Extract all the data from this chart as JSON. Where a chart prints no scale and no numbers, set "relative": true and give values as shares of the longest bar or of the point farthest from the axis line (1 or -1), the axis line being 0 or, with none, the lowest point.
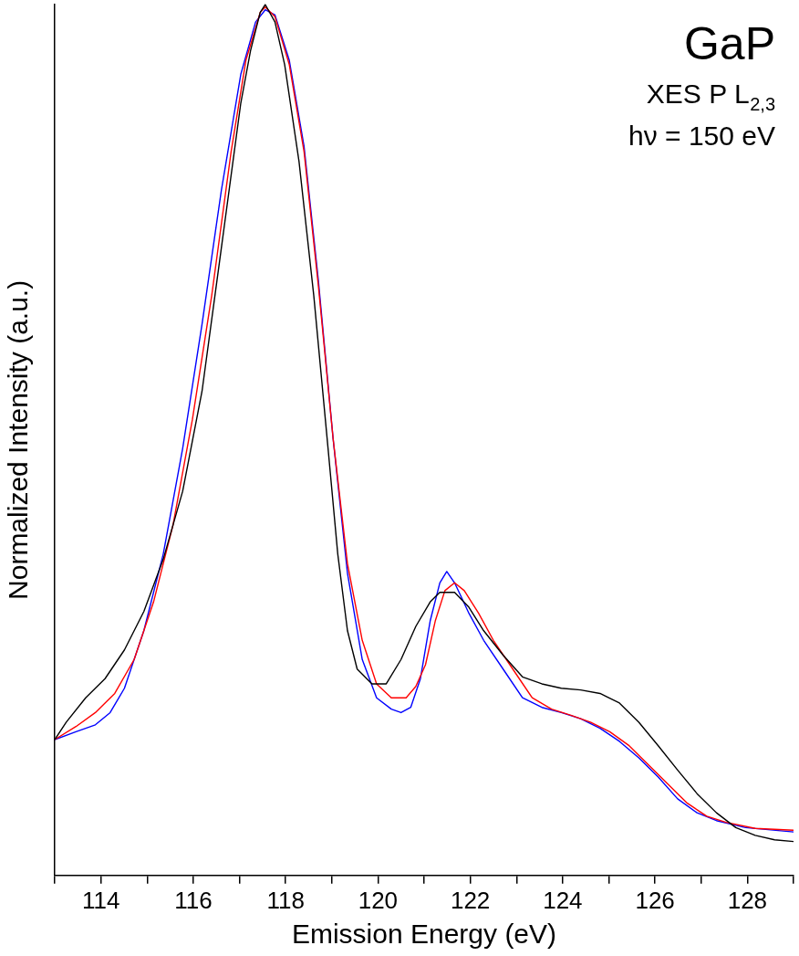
{
  "chart_data": {
    "type": "line",
    "relative": true,
    "xlabel": "Emission Energy (eV)",
    "ylabel": "Normalized Intensity (a.u.)",
    "annotations": [
      "GaP",
      "XES P L$_{2,3}$",
      "hν = 150 eV"
    ],
    "xlim": [
      113,
      129
    ],
    "xticks": [
      {
        "value": 113,
        "label": null
      },
      114,
      {
        "value": 115,
        "label": null
      },
      116,
      {
        "value": 117,
        "label": null
      },
      118,
      {
        "value": 119,
        "label": null
      },
      120,
      {
        "value": 121,
        "label": null
      },
      122,
      {
        "value": 123,
        "label": null
      },
      124,
      {
        "value": 125,
        "label": null
      },
      126,
      {
        "value": 127,
        "label": null
      },
      128,
      {
        "value": 129,
        "label": null
      }
    ],
    "grid": false,
    "legend": false,
    "marker": "none",
    "line_style": "solid",
    "series": [
      {
        "color": "#000000",
        "x": [
          113.0,
          113.25,
          113.67,
          114.09,
          114.51,
          114.93,
          115.35,
          115.77,
          116.19,
          116.61,
          117.03,
          117.24,
          117.45,
          117.56,
          117.77,
          117.98,
          118.29,
          118.61,
          118.92,
          119.13,
          119.34,
          119.55,
          119.87,
          120.18,
          120.5,
          120.82,
          121.13,
          121.34,
          121.66,
          121.97,
          122.29,
          122.71,
          123.13,
          123.55,
          123.97,
          124.39,
          124.81,
          125.23,
          125.65,
          126.07,
          126.49,
          126.91,
          127.33,
          127.75,
          128.17,
          128.59,
          129.0
        ],
        "values": [
          0.156,
          0.176,
          0.204,
          0.226,
          0.259,
          0.303,
          0.363,
          0.441,
          0.556,
          0.721,
          0.887,
          0.947,
          0.991,
          1.0,
          0.98,
          0.931,
          0.82,
          0.666,
          0.49,
          0.369,
          0.281,
          0.237,
          0.22,
          0.22,
          0.248,
          0.286,
          0.314,
          0.325,
          0.325,
          0.308,
          0.281,
          0.253,
          0.228,
          0.22,
          0.215,
          0.213,
          0.209,
          0.198,
          0.176,
          0.149,
          0.121,
          0.094,
          0.072,
          0.055,
          0.046,
          0.041,
          0.039
        ]
      },
      {
        "color": "#ff0000",
        "x": [
          113.0,
          113.46,
          113.88,
          114.3,
          114.72,
          115.14,
          115.56,
          115.98,
          116.4,
          116.82,
          117.14,
          117.45,
          117.56,
          117.77,
          118.08,
          118.4,
          118.71,
          119.03,
          119.34,
          119.66,
          119.97,
          120.29,
          120.61,
          120.82,
          121.03,
          121.24,
          121.45,
          121.66,
          121.87,
          122.18,
          122.5,
          122.92,
          123.34,
          123.76,
          124.18,
          124.6,
          125.02,
          125.44,
          125.86,
          126.28,
          126.7,
          127.12,
          127.54,
          128.17,
          129.0
        ],
        "values": [
          0.156,
          0.171,
          0.187,
          0.209,
          0.248,
          0.314,
          0.402,
          0.523,
          0.666,
          0.831,
          0.936,
          0.991,
          0.997,
          0.986,
          0.931,
          0.831,
          0.677,
          0.501,
          0.358,
          0.27,
          0.22,
          0.204,
          0.204,
          0.217,
          0.242,
          0.292,
          0.327,
          0.336,
          0.327,
          0.301,
          0.27,
          0.237,
          0.204,
          0.191,
          0.184,
          0.176,
          0.165,
          0.149,
          0.127,
          0.105,
          0.083,
          0.068,
          0.061,
          0.054,
          0.052
        ]
      },
      {
        "color": "#0000ff",
        "x": [
          113.0,
          113.46,
          113.88,
          114.2,
          114.51,
          114.93,
          115.35,
          115.77,
          116.19,
          116.61,
          117.03,
          117.35,
          117.56,
          117.77,
          118.08,
          118.4,
          118.71,
          119.03,
          119.34,
          119.66,
          119.97,
          120.29,
          120.5,
          120.71,
          120.92,
          121.13,
          121.34,
          121.49,
          121.66,
          121.97,
          122.29,
          122.71,
          123.13,
          123.55,
          123.97,
          124.39,
          124.81,
          125.23,
          125.65,
          126.07,
          126.49,
          126.91,
          127.33,
          127.96,
          129.0
        ],
        "values": [
          0.156,
          0.165,
          0.173,
          0.187,
          0.215,
          0.281,
          0.369,
          0.49,
          0.633,
          0.787,
          0.92,
          0.98,
          0.994,
          0.988,
          0.936,
          0.837,
          0.683,
          0.501,
          0.347,
          0.248,
          0.204,
          0.191,
          0.187,
          0.193,
          0.226,
          0.292,
          0.336,
          0.349,
          0.336,
          0.301,
          0.27,
          0.237,
          0.204,
          0.193,
          0.187,
          0.18,
          0.169,
          0.154,
          0.135,
          0.113,
          0.088,
          0.072,
          0.063,
          0.055,
          0.05
        ]
      }
    ]
  }
}
